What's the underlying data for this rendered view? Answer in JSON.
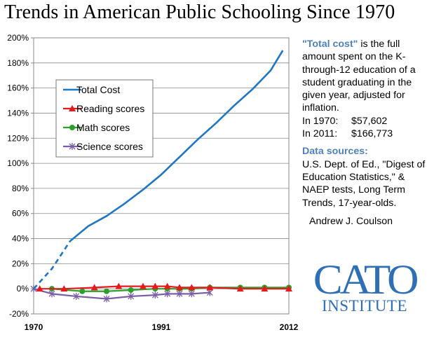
{
  "title": "Trends in American Public Schooling Since 1970",
  "chart_data": {
    "type": "line",
    "title": "Trends in American Public Schooling Since 1970",
    "xlabel": "",
    "ylabel": "",
    "xlim": [
      1970,
      2012
    ],
    "ylim": [
      -20,
      200
    ],
    "x_ticks": [
      "1970",
      "1991",
      "2012"
    ],
    "y_ticks": [
      "-20%",
      "0%",
      "20%",
      "40%",
      "60%",
      "80%",
      "100%",
      "120%",
      "140%",
      "160%",
      "180%",
      "200%"
    ],
    "legend": "top-left",
    "series": [
      {
        "name": "Total Cost",
        "color": "#1f77c4",
        "marker": "none",
        "dashed_until": 1976,
        "points": [
          [
            1970,
            0
          ],
          [
            1973,
            16
          ],
          [
            1976,
            38
          ],
          [
            1979,
            50
          ],
          [
            1982,
            58
          ],
          [
            1985,
            68
          ],
          [
            1988,
            79
          ],
          [
            1991,
            91
          ],
          [
            1994,
            105
          ],
          [
            1997,
            119
          ],
          [
            2000,
            132
          ],
          [
            2003,
            146
          ],
          [
            2006,
            159
          ],
          [
            2009,
            174
          ],
          [
            2011,
            190
          ]
        ]
      },
      {
        "name": "Reading scores",
        "color": "#e41a1c",
        "marker": "triangle",
        "points": [
          [
            1971,
            0
          ],
          [
            1975,
            0
          ],
          [
            1980,
            1
          ],
          [
            1984,
            2
          ],
          [
            1988,
            2
          ],
          [
            1990,
            2
          ],
          [
            1992,
            2
          ],
          [
            1994,
            1
          ],
          [
            1996,
            1
          ],
          [
            1999,
            1
          ],
          [
            2004,
            0
          ],
          [
            2008,
            0
          ],
          [
            2012,
            0
          ]
        ]
      },
      {
        "name": "Math scores",
        "color": "#2ca02c",
        "marker": "circle",
        "points": [
          [
            1973,
            0
          ],
          [
            1978,
            -2
          ],
          [
            1982,
            -2
          ],
          [
            1986,
            -1
          ],
          [
            1990,
            0
          ],
          [
            1992,
            0
          ],
          [
            1994,
            0
          ],
          [
            1996,
            0
          ],
          [
            1999,
            1
          ],
          [
            2004,
            1
          ],
          [
            2008,
            1
          ],
          [
            2012,
            1
          ]
        ]
      },
      {
        "name": "Science scores",
        "color": "#7b5ea7",
        "marker": "star",
        "points": [
          [
            1970,
            0
          ],
          [
            1973,
            -4
          ],
          [
            1977,
            -6
          ],
          [
            1982,
            -8
          ],
          [
            1986,
            -6
          ],
          [
            1990,
            -5
          ],
          [
            1992,
            -4
          ],
          [
            1994,
            -4
          ],
          [
            1996,
            -4
          ],
          [
            1999,
            -3
          ]
        ]
      }
    ]
  },
  "side": {
    "total_cost_label": "\"Total cost\"",
    "total_cost_text": " is the full amount spent on the K-through-12 education of a student graduating in the given year, adjusted for inflation.",
    "cost_1970_label": "In 1970:",
    "cost_1970_value": "$57,602",
    "cost_2011_label": "In 2011:",
    "cost_2011_value": "$166,773",
    "sources_heading": "Data sources:",
    "sources_text": "U.S. Dept. of Ed., \"Digest of Education Statistics,\" & NAEP tests, Long Term Trends, 17-year-olds.",
    "author": "Andrew J. Coulson"
  },
  "logo": {
    "word": "CATO",
    "sub": "INSTITUTE"
  }
}
